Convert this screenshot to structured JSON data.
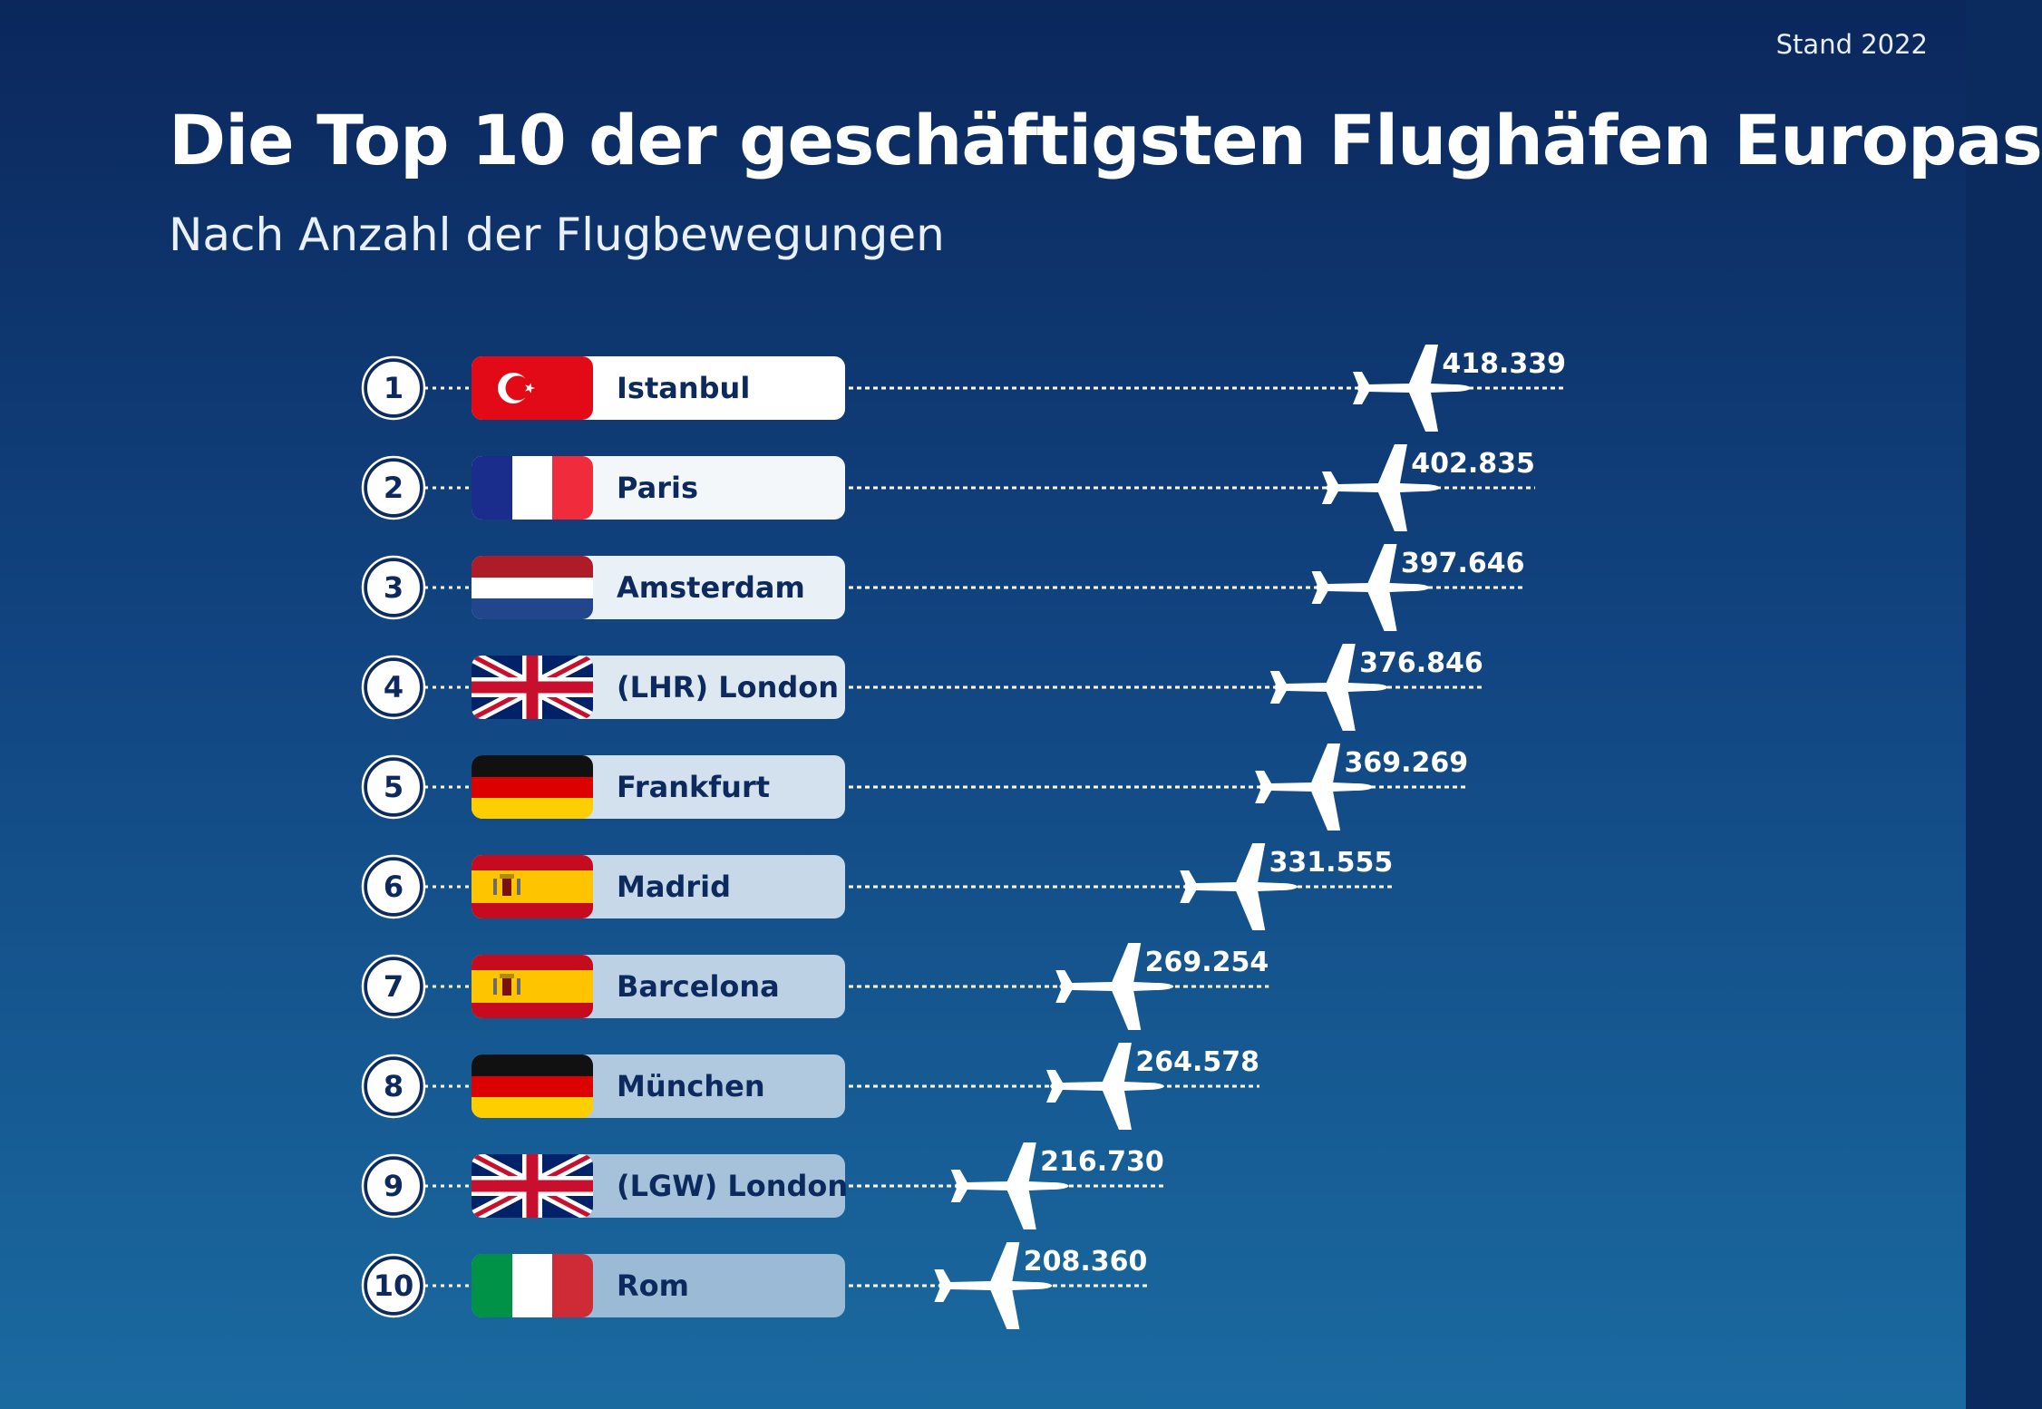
{
  "header": {
    "stand": "Stand 2022",
    "title": "Die Top 10 der geschäftigsten Flughäfen Europas",
    "subtitle": "Nach Anzahl der Flugbewegungen"
  },
  "chart_data": {
    "type": "bar",
    "title": "Die Top 10 der geschäftigsten Flughäfen Europas",
    "subtitle": "Nach Anzahl der Flugbewegungen",
    "xlabel": "",
    "ylabel": "",
    "ylim": [
      0,
      418339
    ],
    "categories": [
      "Istanbul",
      "Paris",
      "Amsterdam",
      "(LHR) London",
      "Frankfurt",
      "Madrid",
      "Barcelona",
      "München",
      "(LGW) London",
      "Rom"
    ],
    "values": [
      418339,
      402835,
      397646,
      376846,
      369269,
      331555,
      269254,
      264578,
      216730,
      208360
    ],
    "items": [
      {
        "rank": "1",
        "city": "Istanbul",
        "value": 418339,
        "label": "418.339",
        "flag": "turkey-flag"
      },
      {
        "rank": "2",
        "city": "Paris",
        "value": 402835,
        "label": "402.835",
        "flag": "france-flag"
      },
      {
        "rank": "3",
        "city": "Amsterdam",
        "value": 397646,
        "label": "397.646",
        "flag": "netherlands-flag"
      },
      {
        "rank": "4",
        "city": "(LHR) London",
        "value": 376846,
        "label": "376.846",
        "flag": "uk-flag"
      },
      {
        "rank": "5",
        "city": "Frankfurt",
        "value": 369269,
        "label": "369.269",
        "flag": "germany-flag"
      },
      {
        "rank": "6",
        "city": "Madrid",
        "value": 331555,
        "label": "331.555",
        "flag": "spain-flag"
      },
      {
        "rank": "7",
        "city": "Barcelona",
        "value": 269254,
        "label": "269.254",
        "flag": "spain-flag"
      },
      {
        "rank": "8",
        "city": "München",
        "value": 264578,
        "label": "264.578",
        "flag": "germany-flag"
      },
      {
        "rank": "9",
        "city": "(LGW) London",
        "value": 216730,
        "label": "216.730",
        "flag": "uk-flag"
      },
      {
        "rank": "10",
        "city": "Rom",
        "value": 208360,
        "label": "208.360",
        "flag": "italy-flag"
      }
    ],
    "marker_icon": "airplane-icon",
    "colors": {
      "rank_circle": "#0c2a5e",
      "text_dark": "#0c2a5e",
      "line": "#ffffff",
      "pill_top": "#ffffff",
      "pill_bottom": "#9bbad6"
    }
  }
}
